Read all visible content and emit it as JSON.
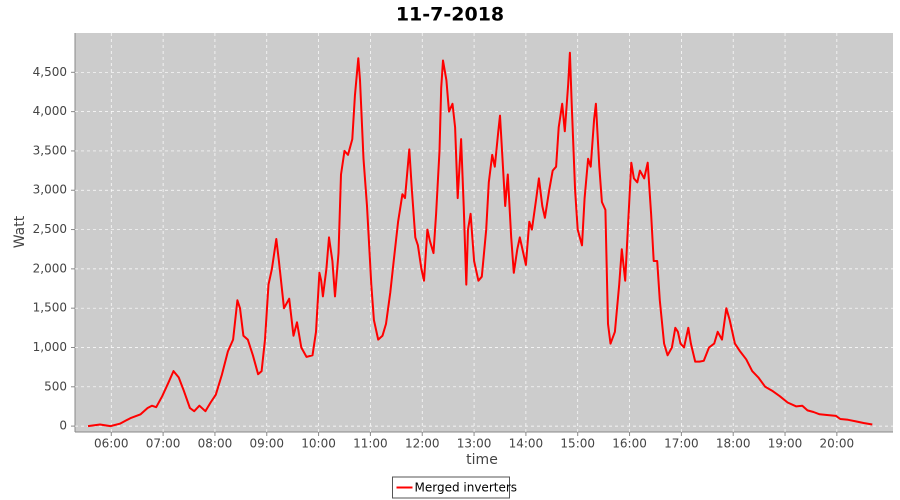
{
  "chart_data": {
    "type": "line",
    "title": "11-7-2018",
    "xlabel": "time",
    "ylabel": "Watt",
    "x": [
      "05:33",
      "05:47",
      "05:59",
      "06:10",
      "06:22",
      "06:34",
      "06:42",
      "06:47",
      "06:52",
      "06:59",
      "07:06",
      "07:12",
      "07:18",
      "07:24",
      "07:31",
      "07:36",
      "07:42",
      "07:49",
      "07:55",
      "08:01",
      "08:08",
      "08:15",
      "08:21",
      "08:26",
      "08:29",
      "08:33",
      "08:38",
      "08:44",
      "08:50",
      "08:54",
      "08:58",
      "09:02",
      "09:06",
      "09:11",
      "09:14",
      "09:20",
      "09:26",
      "09:31",
      "09:35",
      "09:40",
      "09:46",
      "09:53",
      "09:57",
      "10:01",
      "10:03",
      "10:05",
      "10:09",
      "10:12",
      "10:16",
      "10:19",
      "10:23",
      "10:26",
      "10:30",
      "10:34",
      "10:39",
      "10:42",
      "10:46",
      "10:48",
      "10:52",
      "10:56",
      "11:01",
      "11:04",
      "11:09",
      "11:14",
      "11:18",
      "11:23",
      "11:27",
      "11:32",
      "11:37",
      "11:40",
      "11:45",
      "11:48",
      "11:52",
      "11:55",
      "11:59",
      "12:02",
      "12:06",
      "12:09",
      "12:13",
      "12:16",
      "12:20",
      "12:22",
      "12:24",
      "12:28",
      "12:31",
      "12:35",
      "12:38",
      "12:41",
      "12:45",
      "12:48",
      "12:51",
      "12:53",
      "12:56",
      "13:00",
      "13:05",
      "13:09",
      "13:14",
      "13:17",
      "13:21",
      "13:24",
      "13:28",
      "13:30",
      "13:34",
      "13:36",
      "13:39",
      "13:43",
      "13:46",
      "13:50",
      "13:53",
      "13:57",
      "14:00",
      "14:04",
      "14:07",
      "14:12",
      "14:15",
      "14:19",
      "14:22",
      "14:27",
      "14:31",
      "14:35",
      "14:38",
      "14:42",
      "14:45",
      "14:49",
      "14:51",
      "14:53",
      "14:57",
      "15:00",
      "15:05",
      "15:08",
      "15:12",
      "15:15",
      "15:19",
      "15:21",
      "15:25",
      "15:28",
      "15:32",
      "15:35",
      "15:38",
      "15:43",
      "15:48",
      "15:51",
      "15:55",
      "15:58",
      "16:02",
      "16:05",
      "16:09",
      "16:12",
      "16:17",
      "16:21",
      "16:25",
      "16:28",
      "16:32",
      "16:35",
      "16:40",
      "16:44",
      "16:49",
      "16:53",
      "16:56",
      "16:59",
      "17:03",
      "17:08",
      "17:11",
      "17:16",
      "17:21",
      "17:26",
      "17:32",
      "17:38",
      "17:42",
      "17:47",
      "17:52",
      "17:56",
      "18:02",
      "18:08",
      "18:15",
      "18:22",
      "18:29",
      "18:37",
      "18:45",
      "18:54",
      "19:03",
      "19:13",
      "19:20",
      "19:26",
      "19:33",
      "19:40",
      "19:50",
      "19:59",
      "20:04",
      "20:13",
      "20:22",
      "20:31",
      "20:41"
    ],
    "series": [
      {
        "name": "Merged inverters",
        "color": "#ff0000",
        "values": [
          0,
          20,
          0,
          30,
          100,
          150,
          230,
          260,
          240,
          380,
          550,
          700,
          620,
          450,
          230,
          190,
          260,
          190,
          300,
          400,
          650,
          950,
          1100,
          1600,
          1500,
          1150,
          1100,
          900,
          660,
          700,
          1100,
          1800,
          2000,
          2380,
          2100,
          1500,
          1620,
          1150,
          1320,
          1000,
          880,
          900,
          1200,
          1950,
          1850,
          1650,
          2000,
          2400,
          2100,
          1650,
          2200,
          3200,
          3500,
          3450,
          3650,
          4200,
          4680,
          4400,
          3400,
          2800,
          1800,
          1350,
          1100,
          1150,
          1300,
          1700,
          2100,
          2600,
          2950,
          2900,
          3520,
          3000,
          2400,
          2300,
          2000,
          1850,
          2500,
          2350,
          2200,
          2700,
          3500,
          4300,
          4650,
          4400,
          4000,
          4100,
          3800,
          2900,
          3650,
          2800,
          1800,
          2500,
          2700,
          2100,
          1850,
          1900,
          2500,
          3100,
          3450,
          3300,
          3750,
          3950,
          3200,
          2800,
          3200,
          2400,
          1950,
          2250,
          2400,
          2200,
          2050,
          2600,
          2500,
          2900,
          3150,
          2800,
          2650,
          3000,
          3250,
          3300,
          3800,
          4100,
          3750,
          4350,
          4750,
          4100,
          3000,
          2500,
          2300,
          2900,
          3400,
          3300,
          3900,
          4100,
          3300,
          2850,
          2750,
          1300,
          1050,
          1200,
          1800,
          2250,
          1850,
          2500,
          3350,
          3150,
          3100,
          3250,
          3150,
          3350,
          2700,
          2100,
          2100,
          1600,
          1050,
          900,
          1000,
          1250,
          1200,
          1050,
          1000,
          1250,
          1050,
          820,
          820,
          830,
          1000,
          1050,
          1200,
          1100,
          1500,
          1350,
          1050,
          950,
          850,
          700,
          620,
          500,
          450,
          380,
          300,
          250,
          260,
          200,
          180,
          150,
          140,
          130,
          90,
          80,
          60,
          40,
          20
        ]
      }
    ],
    "xlim": [
      "05:18",
      "21:05"
    ],
    "xticks": [
      "06:00",
      "07:00",
      "08:00",
      "09:00",
      "10:00",
      "11:00",
      "12:00",
      "13:00",
      "14:00",
      "15:00",
      "16:00",
      "17:00",
      "18:00",
      "19:00",
      "20:00"
    ],
    "ylim": [
      -75,
      5000
    ],
    "yticks": [
      0,
      500,
      {
        "value": 1000,
        "label": "1,000"
      },
      {
        "value": 1500,
        "label": "1,500"
      },
      {
        "value": 2000,
        "label": "2,000"
      },
      {
        "value": 2500,
        "label": "2,500"
      },
      {
        "value": 3000,
        "label": "3,000"
      },
      {
        "value": 3500,
        "label": "3,500"
      },
      {
        "value": 4000,
        "label": "4,000"
      },
      {
        "value": 4500,
        "label": "4,500"
      }
    ],
    "grid": true,
    "legend": "bottom"
  }
}
